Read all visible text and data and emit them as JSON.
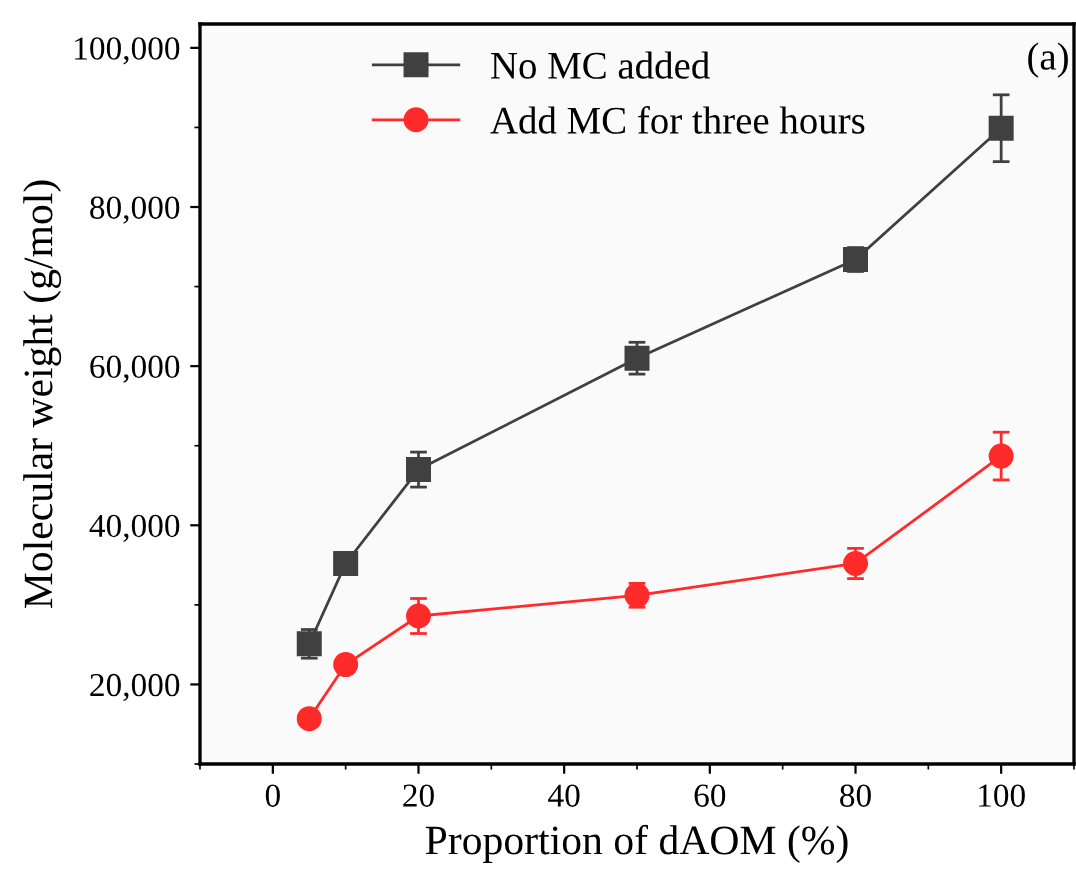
{
  "chart_data": {
    "type": "line",
    "xlabel": "Proportion of dAOM (%)",
    "ylabel": "Molecular weight (g/mol)",
    "annotations": [
      "(a)"
    ],
    "x": [
      5,
      10,
      20,
      50,
      80,
      100
    ],
    "series": [
      {
        "name": "No MC added",
        "color": "#404040",
        "marker": "square",
        "values": [
          25100,
          35200,
          47000,
          61000,
          73400,
          89900
        ],
        "errors": [
          1800,
          1000,
          2200,
          2000,
          1500,
          4200
        ]
      },
      {
        "name": "Add MC for three hours",
        "color": "#ff2a2a",
        "marker": "circle",
        "values": [
          15700,
          22500,
          28600,
          31200,
          35200,
          48700
        ],
        "errors": [
          1000,
          1000,
          2200,
          1500,
          1900,
          3000
        ]
      }
    ],
    "xlim": [
      -10,
      110
    ],
    "xticks": [
      0,
      20,
      40,
      60,
      80,
      100
    ],
    "ylim": [
      10000,
      103000
    ],
    "yticks": [
      {
        "value": 20000,
        "label": "20,000"
      },
      {
        "value": 40000,
        "label": "40,000"
      },
      {
        "value": 60000,
        "label": "60,000"
      },
      {
        "value": 80000,
        "label": "80,000"
      },
      {
        "value": 100000,
        "label": "100,000"
      }
    ],
    "legend": "top",
    "grid": false,
    "line_style": "solid"
  }
}
